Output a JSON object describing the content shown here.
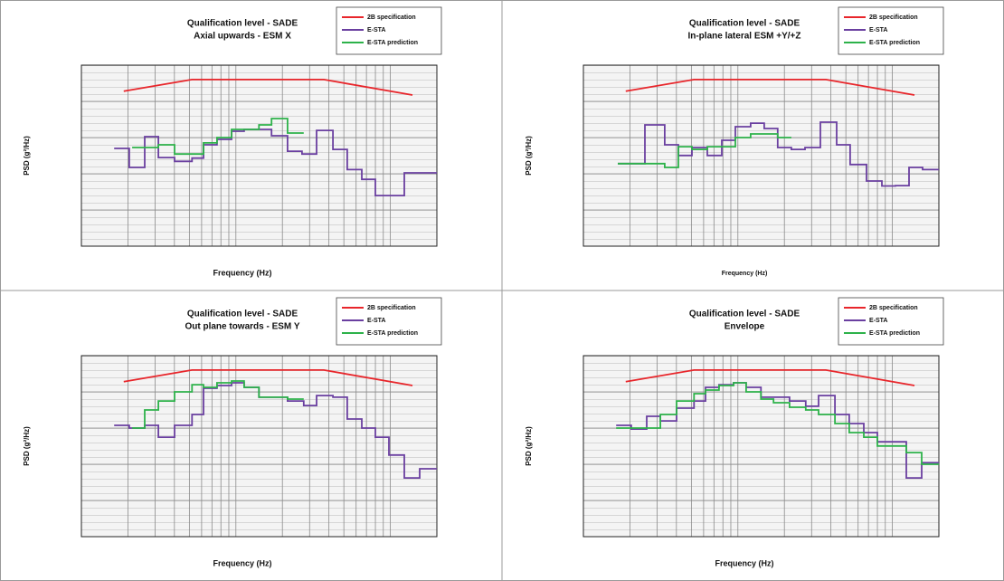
{
  "chart_data": [
    {
      "type": "line",
      "title": "Qualification level - SADE",
      "subtitle": "Axial upwards - ESM X",
      "x_label": "Frequency (Hz)",
      "y_label": "PSD (g²/Hz)",
      "xscale": "log",
      "yscale": "log",
      "xlim": [
        10,
        2000
      ],
      "ylim": [
        1e-05,
        1
      ],
      "xticks": [
        10,
        20,
        30,
        40,
        50,
        60,
        70,
        80,
        90,
        100,
        200,
        300,
        400,
        500,
        600,
        700,
        800,
        900,
        1000,
        2000
      ],
      "yticks": [
        1e-05,
        0.0001,
        0.001,
        0.01,
        0.1,
        1
      ],
      "grid": true,
      "legend": "upper right",
      "series": [
        {
          "name": "2B specification",
          "color": "#e8262b",
          "x": [
            18.8,
            52,
            371,
            1390
          ],
          "values": [
            0.19,
            0.4,
            0.4,
            0.15
          ]
        },
        {
          "name": "E-STA",
          "color": "#6a3fa0",
          "drawstyle": "steps-post",
          "x": [
            16.3,
            20.4,
            25.7,
            31.5,
            40.1,
            52,
            61.7,
            75.5,
            93.8,
            113,
            170,
            216,
            268,
            333,
            425,
            526,
            653,
            800,
            1231,
            1549,
            2000
          ],
          "values": [
            0.005,
            0.0015,
            0.0106,
            0.0028,
            0.0022,
            0.0027,
            0.0063,
            0.0089,
            0.015,
            0.0168,
            0.0112,
            0.0042,
            0.0035,
            0.0158,
            0.0047,
            0.0013,
            0.0007,
            0.00025,
            0.00106,
            0.00106,
            0.00106
          ]
        },
        {
          "name": "E-STA prediction",
          "color": "#2db24a",
          "drawstyle": "steps-post",
          "x": [
            21.3,
            31.5,
            40.1,
            61.7,
            75.5,
            93.8,
            141,
            170,
            216,
            275
          ],
          "values": [
            0.0053,
            0.0063,
            0.0035,
            0.0071,
            0.01,
            0.0168,
            0.0224,
            0.0335,
            0.0133,
            0.0133
          ]
        }
      ]
    },
    {
      "type": "line",
      "title": "Qualification level - SADE",
      "subtitle": "In-plane lateral  ESM +Y/+Z",
      "x_label": "Frequency (Hz)",
      "y_label": "PSD (g²/Hz)",
      "xscale": "log",
      "yscale": "log",
      "xlim": [
        10,
        2000
      ],
      "ylim": [
        1e-05,
        1
      ],
      "xticks": [
        10,
        20,
        30,
        40,
        50,
        60,
        70,
        80,
        90,
        100,
        200,
        300,
        400,
        500,
        600,
        700,
        800,
        900,
        1000,
        2000
      ],
      "yticks": [
        1e-05,
        0.0001,
        0.001,
        0.01,
        0.1,
        1
      ],
      "grid": true,
      "legend": "upper right",
      "series": [
        {
          "name": "2B specification",
          "color": "#e8262b",
          "x": [
            18.8,
            52,
            371,
            1390
          ],
          "values": [
            0.19,
            0.4,
            0.4,
            0.15
          ]
        },
        {
          "name": "E-STA",
          "color": "#6a3fa0",
          "drawstyle": "steps-post",
          "x": [
            16.7,
            25,
            33.6,
            41.2,
            50.4,
            63.4,
            78.7,
            96.3,
            121,
            148,
            181,
            222,
            272,
            342,
            436,
            533,
            680,
            855,
            1047,
            1282,
            1570,
            2000
          ],
          "values": [
            0.0019,
            0.0224,
            0.0063,
            0.0032,
            0.0053,
            0.0032,
            0.0084,
            0.02,
            0.025,
            0.0178,
            0.0053,
            0.0047,
            0.0053,
            0.0266,
            0.0063,
            0.0018,
            0.00063,
            0.00046,
            0.00047,
            0.0015,
            0.0013,
            0.0013
          ]
        },
        {
          "name": "E-STA prediction",
          "color": "#2db24a",
          "drawstyle": "steps-post",
          "x": [
            16.7,
            33.6,
            41.2,
            50.4,
            63.4,
            96.3,
            121,
            181,
            222
          ],
          "values": [
            0.0019,
            0.0015,
            0.0056,
            0.0047,
            0.0056,
            0.01,
            0.0126,
            0.01,
            0.01
          ]
        }
      ]
    },
    {
      "type": "line",
      "title": "Qualification level - SADE",
      "subtitle": "Out plane towards - ESM  Y",
      "x_label": "Frequency (Hz)",
      "y_label": "PSD (g²/Hz)",
      "xscale": "log",
      "yscale": "log",
      "xlim": [
        10,
        2000
      ],
      "ylim": [
        1e-05,
        1
      ],
      "xticks": [
        10,
        20,
        30,
        40,
        50,
        60,
        70,
        80,
        90,
        100,
        200,
        300,
        400,
        500,
        600,
        700,
        800,
        900,
        1000,
        2000
      ],
      "yticks": [
        1e-05,
        0.0001,
        0.001,
        0.01,
        0.1,
        1
      ],
      "grid": true,
      "legend": "upper right",
      "series": [
        {
          "name": "2B specification",
          "color": "#e8262b",
          "x": [
            18.8,
            52,
            371,
            1390
          ],
          "values": [
            0.19,
            0.4,
            0.4,
            0.15
          ]
        },
        {
          "name": "E-STA",
          "color": "#6a3fa0",
          "drawstyle": "steps-post",
          "x": [
            16.3,
            20.4,
            25.7,
            31.5,
            40.1,
            52,
            61.7,
            75.5,
            93.8,
            113,
            141,
            216,
            275,
            333,
            425,
            526,
            653,
            800,
            979,
            1231,
            1549,
            2000
          ],
          "values": [
            0.0119,
            0.01,
            0.0119,
            0.0056,
            0.0119,
            0.0237,
            0.126,
            0.15,
            0.178,
            0.133,
            0.071,
            0.056,
            0.042,
            0.079,
            0.071,
            0.0178,
            0.01,
            0.0056,
            0.0018,
            0.00042,
            0.00075,
            0.00075
          ]
        },
        {
          "name": "E-STA prediction",
          "color": "#2db24a",
          "drawstyle": "steps-post",
          "x": [
            21.3,
            25.7,
            31.5,
            40.1,
            52,
            61.7,
            75.5,
            93.8,
            113,
            141,
            216,
            275
          ],
          "values": [
            0.01,
            0.0316,
            0.056,
            0.1,
            0.158,
            0.133,
            0.178,
            0.2,
            0.133,
            0.071,
            0.063,
            0.063
          ]
        }
      ]
    },
    {
      "type": "line",
      "title": "Qualification level - SADE",
      "subtitle": "Envelope",
      "x_label": "Frequency (Hz)",
      "y_label": "PSD (g²/Hz)",
      "xscale": "log",
      "yscale": "log",
      "xlim": [
        10,
        2000
      ],
      "ylim": [
        1e-05,
        1
      ],
      "xticks": [
        10,
        20,
        30,
        40,
        50,
        60,
        70,
        80,
        90,
        100,
        200,
        300,
        400,
        500,
        600,
        700,
        800,
        900,
        1000,
        2000
      ],
      "yticks": [
        1e-05,
        0.0001,
        0.001,
        0.01,
        0.1,
        1
      ],
      "grid": true,
      "legend": "upper right",
      "series": [
        {
          "name": "2B specification",
          "color": "#e8262b",
          "x": [
            18.8,
            52,
            371,
            1390
          ],
          "values": [
            0.19,
            0.4,
            0.4,
            0.15
          ]
        },
        {
          "name": "E-STA",
          "color": "#6a3fa0",
          "drawstyle": "steps-post",
          "x": [
            16.3,
            20.4,
            25.7,
            31.5,
            40.1,
            52,
            61.7,
            75.5,
            93.8,
            113,
            141,
            216,
            275,
            333,
            425,
            526,
            653,
            800,
            1231,
            1549,
            2000
          ],
          "values": [
            0.0119,
            0.0094,
            0.0211,
            0.0158,
            0.0355,
            0.056,
            0.133,
            0.158,
            0.178,
            0.133,
            0.071,
            0.056,
            0.04,
            0.079,
            0.0237,
            0.0133,
            0.0075,
            0.0042,
            0.00042,
            0.0011,
            0.0011
          ]
        },
        {
          "name": "E-STA prediction",
          "color": "#2db24a",
          "drawstyle": "steps-post",
          "x": [
            16.3,
            31.5,
            40.1,
            52,
            61.7,
            75.5,
            93.8,
            113,
            141,
            170,
            216,
            275,
            333,
            425,
            526,
            653,
            800,
            1231,
            1549,
            2000
          ],
          "values": [
            0.01,
            0.0237,
            0.056,
            0.089,
            0.112,
            0.15,
            0.178,
            0.1,
            0.063,
            0.05,
            0.0376,
            0.0316,
            0.0237,
            0.0133,
            0.0075,
            0.0056,
            0.0032,
            0.0021,
            0.001,
            0.001
          ]
        }
      ]
    }
  ]
}
